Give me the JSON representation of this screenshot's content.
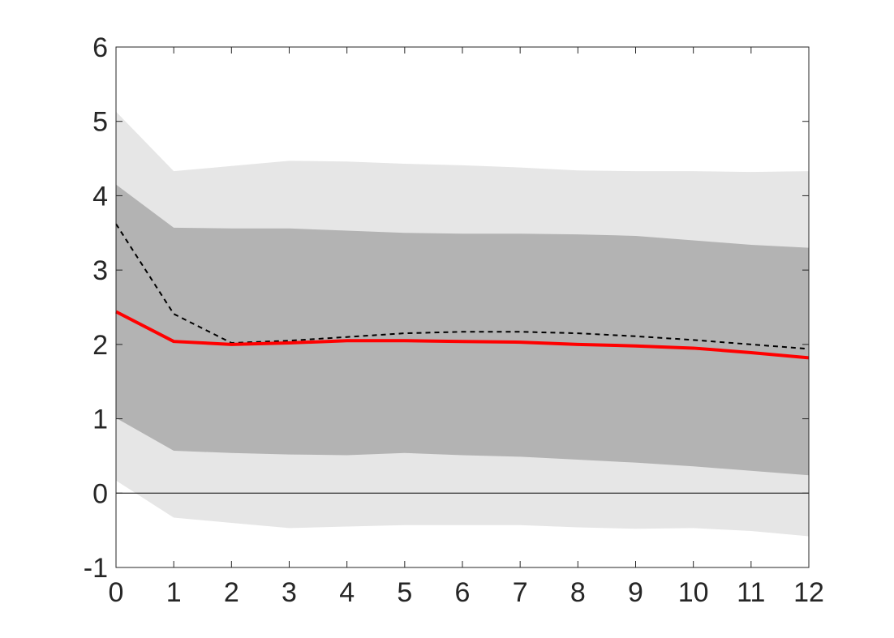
{
  "chart_data": {
    "type": "area",
    "title": "",
    "xlabel": "",
    "ylabel": "",
    "xlim": [
      0,
      12
    ],
    "ylim": [
      -1,
      6
    ],
    "grid": false,
    "x": [
      0,
      1,
      2,
      3,
      4,
      5,
      6,
      7,
      8,
      9,
      10,
      11,
      12
    ],
    "xticks": [
      "0",
      "1",
      "2",
      "3",
      "4",
      "5",
      "6",
      "7",
      "8",
      "9",
      "10",
      "11",
      "12"
    ],
    "yticks": [
      "-1",
      "0",
      "1",
      "2",
      "3",
      "4",
      "5",
      "6"
    ],
    "zero_line": 0,
    "bands": [
      {
        "color": "#e6e6e6",
        "upper": [
          5.13,
          4.33,
          4.4,
          4.47,
          4.46,
          4.43,
          4.41,
          4.38,
          4.34,
          4.33,
          4.33,
          4.32,
          4.33
        ],
        "lower": [
          0.17,
          -0.33,
          -0.4,
          -0.47,
          -0.45,
          -0.43,
          -0.43,
          -0.43,
          -0.46,
          -0.48,
          -0.47,
          -0.51,
          -0.58
        ]
      },
      {
        "color": "#b3b3b3",
        "upper": [
          4.15,
          3.57,
          3.56,
          3.56,
          3.53,
          3.5,
          3.49,
          3.49,
          3.48,
          3.46,
          3.4,
          3.34,
          3.3
        ],
        "lower": [
          1.01,
          0.57,
          0.54,
          0.52,
          0.51,
          0.54,
          0.51,
          0.49,
          0.45,
          0.41,
          0.36,
          0.3,
          0.24
        ]
      }
    ],
    "series": [
      {
        "style": "dashed",
        "color": "#000000",
        "values": [
          3.62,
          2.41,
          2.02,
          2.05,
          2.1,
          2.15,
          2.17,
          2.17,
          2.15,
          2.11,
          2.06,
          2.0,
          1.94
        ]
      },
      {
        "style": "solid",
        "color": "#ff0000",
        "values": [
          2.44,
          2.04,
          2.0,
          2.02,
          2.05,
          2.05,
          2.04,
          2.03,
          2.0,
          1.98,
          1.95,
          1.89,
          1.82
        ]
      }
    ]
  }
}
